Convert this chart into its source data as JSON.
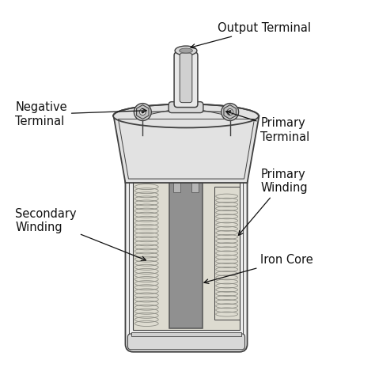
{
  "background_color": "#ffffff",
  "line_color": "#404040",
  "body_fill": "#f0f0f0",
  "body_stroke": "#404040",
  "core_fill": "#909090",
  "winding_fill": "#d8d4c8",
  "top_cap_fill": "#e4e4e4",
  "terminal_fill": "#e8e8e8",
  "bolt_fill": "#c8c8c8",
  "labels": {
    "output_terminal": "Output Terminal",
    "negative_terminal": "Negative\nTerminal",
    "primary_terminal": "Primary\nTerminal",
    "primary_winding": "Primary\nWinding",
    "secondary_winding": "Secondary\nWinding",
    "iron_core": "Iron Core"
  },
  "label_fontsize": 10.5,
  "fig_size": [
    4.74,
    4.74
  ],
  "dpi": 100
}
